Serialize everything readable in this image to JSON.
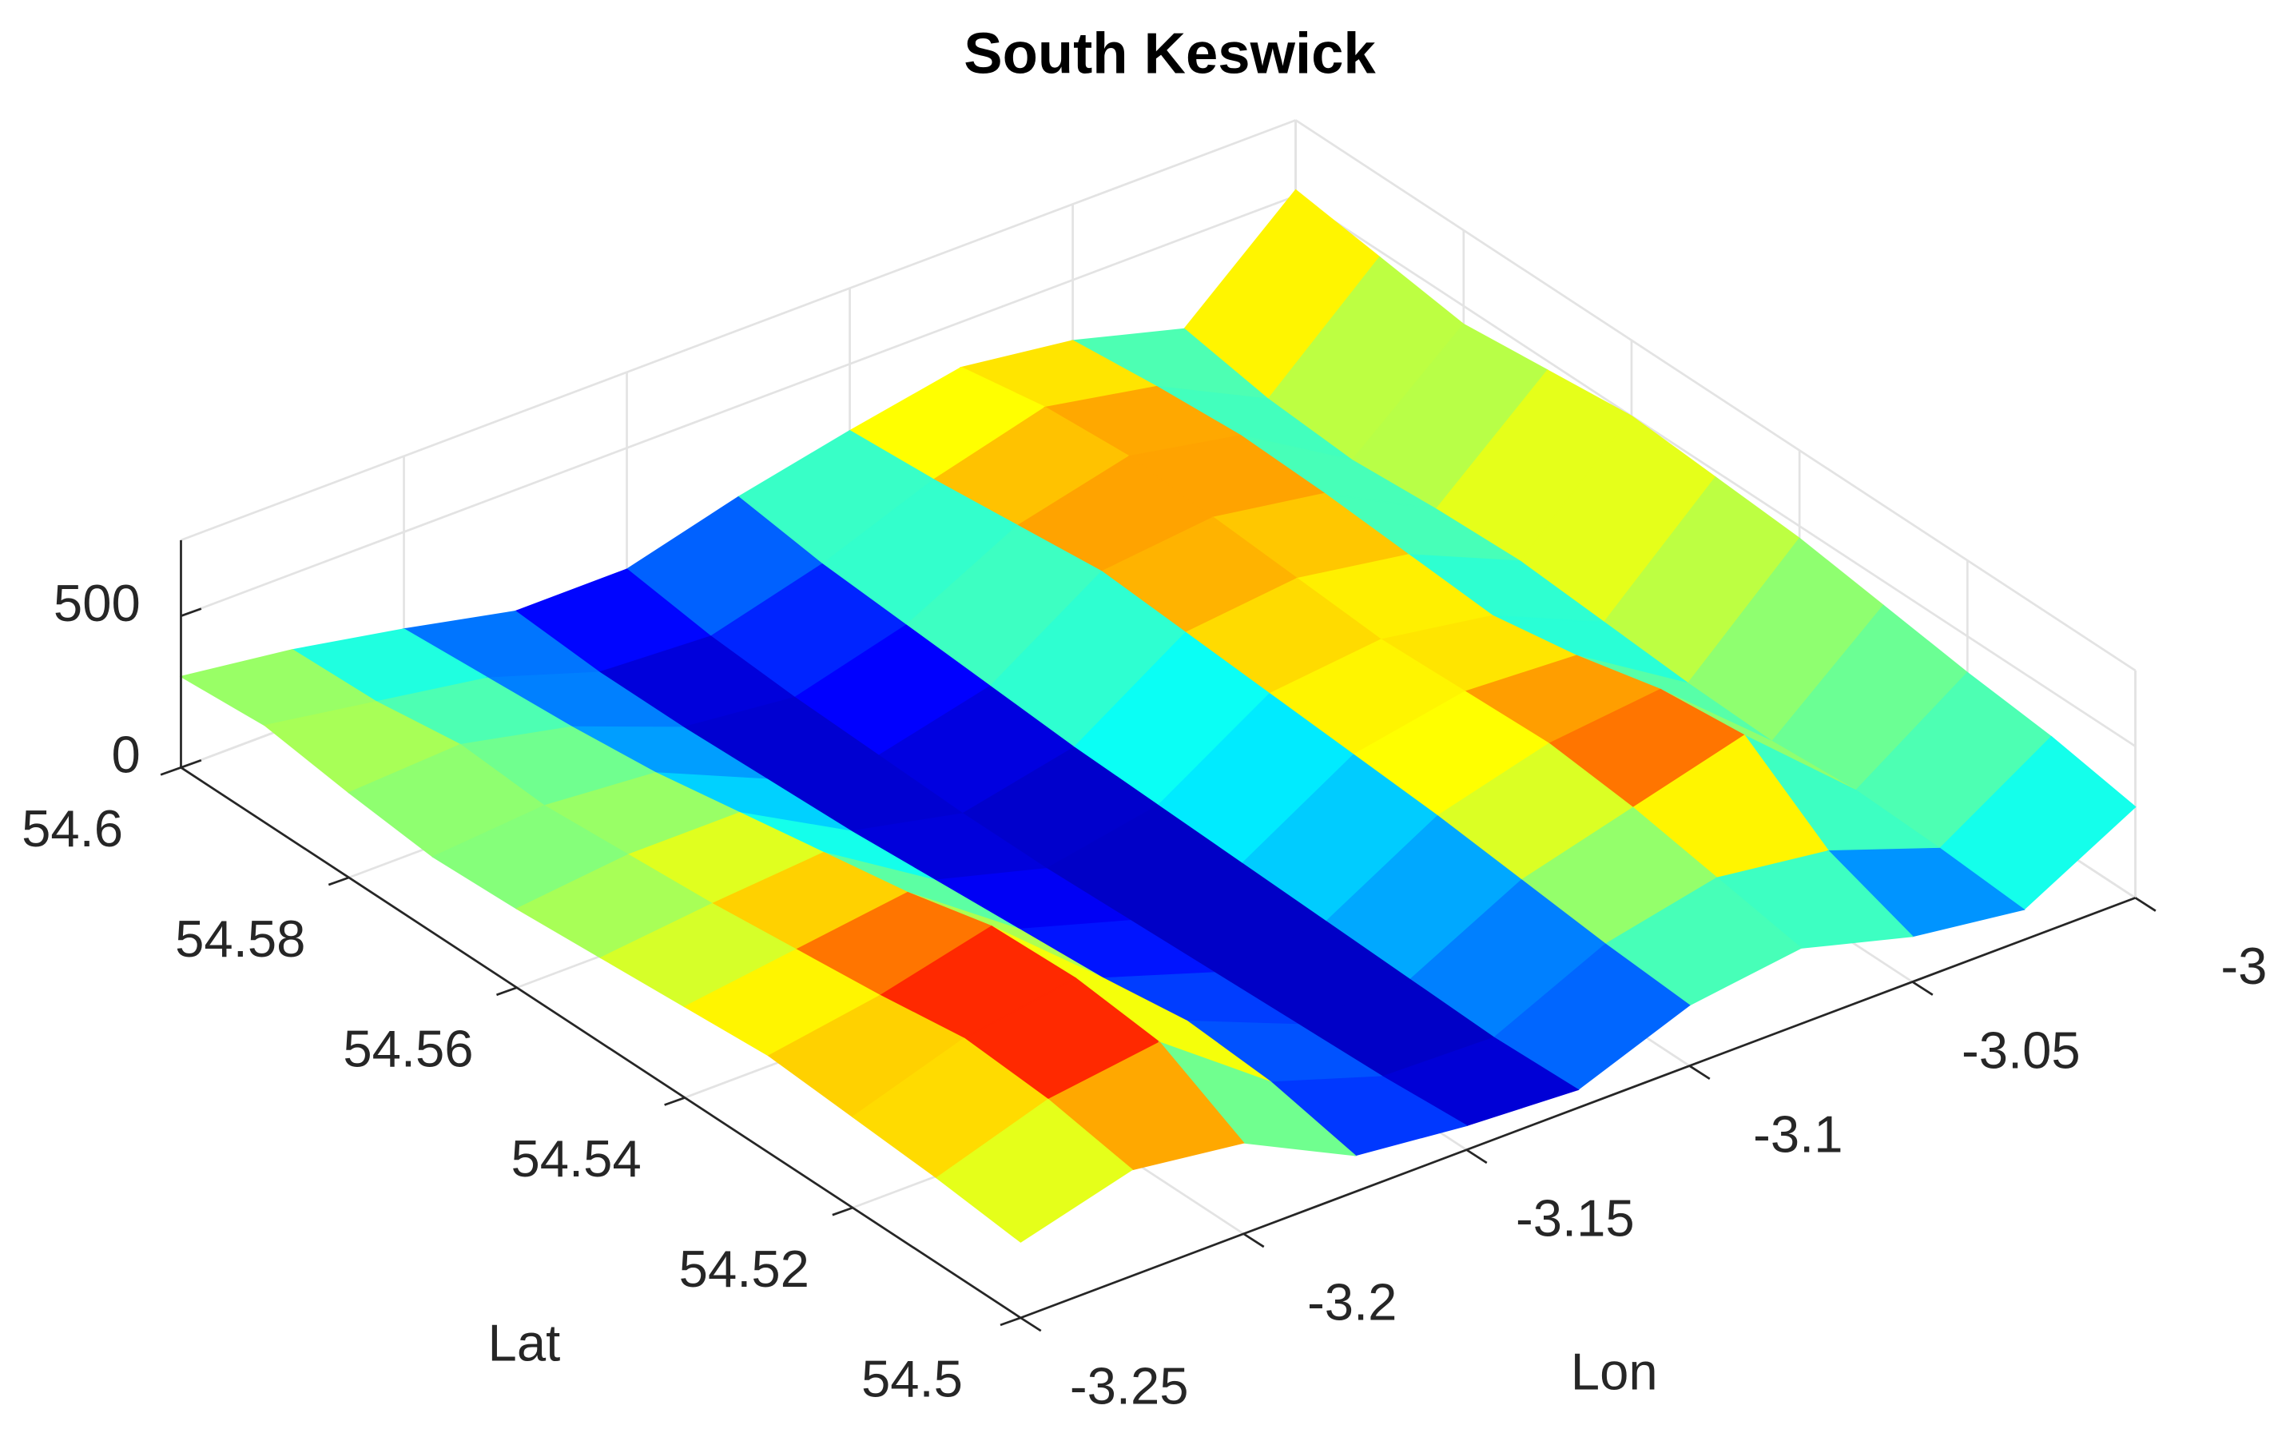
{
  "chart_data": {
    "type": "surface",
    "title": "South Keswick",
    "xlabel": "Lon",
    "ylabel": "Lat",
    "x": [
      -3.25,
      -3.225,
      -3.2,
      -3.175,
      -3.15,
      -3.125,
      -3.1,
      -3.075,
      -3.05,
      -3.025,
      -3.0
    ],
    "y": [
      54.5,
      54.51,
      54.52,
      54.53,
      54.54,
      54.55,
      54.56,
      54.57,
      54.58,
      54.59,
      54.6
    ],
    "z": [
      [
        250,
        350,
        300,
        120,
        80,
        60,
        200,
        250,
        150,
        100,
        300
      ],
      [
        280,
        400,
        450,
        180,
        60,
        50,
        220,
        300,
        250,
        120,
        350
      ],
      [
        300,
        420,
        480,
        200,
        50,
        60,
        250,
        350,
        450,
        130,
        380
      ],
      [
        320,
        380,
        470,
        160,
        40,
        70,
        280,
        380,
        420,
        110,
        420
      ],
      [
        300,
        350,
        400,
        140,
        30,
        80,
        300,
        370,
        350,
        120,
        460
      ],
      [
        280,
        320,
        350,
        120,
        20,
        90,
        320,
        360,
        300,
        140,
        480
      ],
      [
        260,
        300,
        300,
        100,
        20,
        100,
        340,
        380,
        320,
        160,
        500
      ],
      [
        250,
        280,
        250,
        90,
        30,
        120,
        360,
        400,
        340,
        150,
        470
      ],
      [
        280,
        300,
        220,
        80,
        40,
        140,
        330,
        420,
        350,
        130,
        440
      ],
      [
        320,
        260,
        200,
        80,
        60,
        160,
        300,
        400,
        330,
        150,
        480
      ],
      [
        300,
        250,
        180,
        100,
        100,
        200,
        280,
        350,
        300,
        200,
        520
      ]
    ],
    "colormap": "jet",
    "xlim": [
      -3.25,
      -3
    ],
    "xticks": [
      -3.25,
      -3.2,
      -3.15,
      -3.1,
      -3.05,
      -3
    ],
    "ylim": [
      54.5,
      54.6
    ],
    "yticks": [
      54.5,
      54.52,
      54.54,
      54.56,
      54.58,
      54.6
    ],
    "zlim": [
      0,
      750
    ],
    "zticks": [
      0,
      500
    ],
    "grid": true
  }
}
